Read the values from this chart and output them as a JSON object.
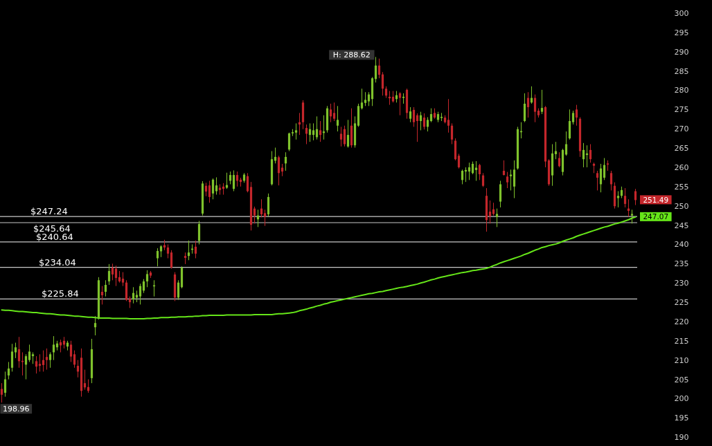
{
  "chart_data": {
    "type": "candlestick",
    "categories": [
      null,
      null,
      null,
      null,
      null,
      null,
      null,
      null,
      null,
      null,
      null,
      null,
      null,
      null,
      null,
      null,
      null,
      null,
      null,
      null,
      null,
      null,
      null,
      null,
      null,
      null,
      null,
      null,
      null,
      null,
      null,
      null,
      null,
      null,
      null,
      null,
      null,
      null,
      null,
      null,
      null,
      null,
      null,
      null,
      null,
      null,
      null,
      null,
      null,
      null,
      null,
      null,
      null,
      null,
      null,
      null,
      null,
      null,
      null,
      null,
      null,
      null,
      null,
      null,
      null,
      null,
      null,
      null,
      null,
      null,
      null,
      null,
      null,
      null,
      null,
      null,
      null,
      null,
      null,
      null,
      null,
      null,
      null,
      null,
      null,
      null,
      null,
      null,
      null,
      null,
      null,
      null,
      null,
      null,
      null,
      null,
      null,
      null,
      null,
      null,
      null,
      null,
      null,
      null,
      null,
      null,
      null,
      null,
      null,
      null,
      null,
      null,
      null,
      null,
      null,
      null,
      null,
      null,
      null,
      null,
      null,
      null,
      null,
      null,
      null,
      null,
      null,
      null,
      null,
      null,
      null,
      null,
      null,
      null,
      null,
      null,
      null,
      null,
      null,
      null,
      null,
      null,
      null,
      null,
      null,
      null,
      null,
      null,
      null,
      null,
      null,
      null,
      null,
      null,
      null,
      null,
      null,
      null,
      null,
      null,
      null,
      null,
      null,
      null,
      null,
      null,
      null,
      null,
      null,
      null,
      null,
      null,
      null,
      null,
      null,
      null,
      null,
      null,
      null,
      null,
      null,
      null,
      null,
      null
    ],
    "ohlc": [
      [
        202.5,
        204,
        198.96,
        201
      ],
      [
        201.5,
        207,
        200.5,
        205
      ],
      [
        206,
        209.5,
        205,
        207.8
      ],
      [
        208,
        214.2,
        207,
        212.2
      ],
      [
        212,
        214.5,
        210.5,
        213.3
      ],
      [
        212.8,
        216,
        208,
        209.7
      ],
      [
        209.8,
        212,
        206,
        209.5
      ],
      [
        208.8,
        211.5,
        205,
        211
      ],
      [
        210,
        214,
        209.5,
        212.2
      ],
      [
        211,
        212,
        209,
        211.5
      ],
      [
        209.7,
        211,
        206.5,
        208.3
      ],
      [
        209,
        211.5,
        207,
        208.5
      ],
      [
        210,
        212.5,
        207,
        208.7
      ],
      [
        210.8,
        213,
        207.5,
        210
      ],
      [
        210,
        212,
        208,
        211.5
      ],
      [
        212,
        216.2,
        210,
        214
      ],
      [
        213.3,
        215,
        212.5,
        214.3
      ],
      [
        214.6,
        215.3,
        212,
        213.8
      ],
      [
        215,
        216,
        213,
        214
      ],
      [
        213.5,
        215,
        212.5,
        214.5
      ],
      [
        214,
        215,
        209.5,
        210.9
      ],
      [
        211.5,
        212.5,
        208,
        208.8
      ],
      [
        208.5,
        210,
        205.5,
        207
      ],
      [
        210.6,
        213,
        200.5,
        202
      ],
      [
        204,
        207.5,
        202.3,
        202.9
      ],
      [
        203,
        205,
        201.5,
        202
      ],
      [
        205.3,
        215.5,
        204,
        212.8
      ],
      [
        218.5,
        221.4,
        216.4,
        219.6
      ],
      [
        221,
        231.5,
        220.5,
        230.7
      ],
      [
        227.7,
        229.2,
        224.4,
        226.8
      ],
      [
        227.7,
        230.7,
        226.5,
        229.5
      ],
      [
        230.4,
        234.9,
        229.5,
        233.1
      ],
      [
        234,
        235,
        230.7,
        232.2
      ],
      [
        233.7,
        234.5,
        229.2,
        231.3
      ],
      [
        231.5,
        233.1,
        230.1,
        230.4
      ],
      [
        231.1,
        232.8,
        229.2,
        230.1
      ],
      [
        230.1,
        230.7,
        225.3,
        225.6
      ],
      [
        225.9,
        226.5,
        223.5,
        225
      ],
      [
        225.7,
        228.9,
        224.7,
        227.4
      ],
      [
        226.2,
        228,
        225,
        226.9
      ],
      [
        226.5,
        229.8,
        224.4,
        229.2
      ],
      [
        228,
        231,
        227.4,
        230.4
      ],
      [
        230.4,
        233.3,
        228.9,
        232.3
      ],
      [
        232.7,
        233.1,
        231.3,
        231.9
      ],
      [
        229.1,
        230.7,
        226.5,
        229.4
      ],
      [
        236.4,
        239,
        234.3,
        238.3
      ],
      [
        238.2,
        239.8,
        236.7,
        239.5
      ],
      [
        239.8,
        241.2,
        238.5,
        239.2
      ],
      [
        239.2,
        240,
        236.4,
        237.6
      ],
      [
        237.9,
        238.5,
        233.7,
        234
      ],
      [
        232.2,
        232.8,
        225.3,
        226.2
      ],
      [
        226.2,
        230.7,
        225.6,
        230.1
      ],
      [
        228.9,
        234.3,
        228.6,
        234
      ],
      [
        237,
        237.9,
        234.9,
        236.5
      ],
      [
        237,
        241,
        235.9,
        237.9
      ],
      [
        238.6,
        240,
        237.6,
        238.9
      ],
      [
        239.4,
        241,
        236.4,
        237.6
      ],
      [
        240.9,
        246.1,
        240,
        245.3
      ],
      [
        248,
        256.4,
        247.5,
        255.8
      ],
      [
        255.2,
        256,
        252.5,
        253.7
      ],
      [
        255.3,
        256.5,
        250.8,
        252.3
      ],
      [
        253.2,
        257.1,
        251.7,
        256.8
      ],
      [
        253.8,
        257.4,
        252.9,
        255.3
      ],
      [
        254.7,
        255.6,
        252.9,
        254.1
      ],
      [
        255,
        255.9,
        252.9,
        254.4
      ],
      [
        254.7,
        258.6,
        254.4,
        255.4
      ],
      [
        256.5,
        258.9,
        255.6,
        258
      ],
      [
        254.4,
        259.2,
        253.8,
        258
      ],
      [
        258,
        258.9,
        255,
        256.5
      ],
      [
        256.8,
        257.3,
        255,
        256.2
      ],
      [
        256.5,
        258.5,
        256,
        258.1
      ],
      [
        257.7,
        258.5,
        253.5,
        253.8
      ],
      [
        254.9,
        256.2,
        243.6,
        245.1
      ],
      [
        249.3,
        249.8,
        245.4,
        247.5
      ],
      [
        246.5,
        249,
        244.5,
        247.5
      ],
      [
        249.3,
        251.7,
        247,
        247.8
      ],
      [
        248.1,
        249,
        244.8,
        247.2
      ],
      [
        247.8,
        253.2,
        247.2,
        252.3
      ],
      [
        255.6,
        264.2,
        255.3,
        262.1
      ],
      [
        261.7,
        265.1,
        261,
        262.7
      ],
      [
        262.6,
        263,
        255.3,
        258.5
      ],
      [
        259.9,
        260.9,
        257.7,
        258.9
      ],
      [
        261,
        263.9,
        259.1,
        262.7
      ],
      [
        264.6,
        269,
        264.2,
        268.8
      ],
      [
        268.8,
        269.9,
        268.1,
        269.1
      ],
      [
        269,
        271.4,
        267.2,
        269.6
      ],
      [
        271.7,
        274.1,
        268.4,
        271.1
      ],
      [
        276.8,
        277.4,
        269.9,
        271.7
      ],
      [
        270.2,
        271.1,
        266,
        268.7
      ],
      [
        268.4,
        271.4,
        266.6,
        269.9
      ],
      [
        268.4,
        271.4,
        267,
        269.6
      ],
      [
        267.8,
        273.2,
        267.2,
        269.9
      ],
      [
        269.6,
        272,
        266.6,
        268.4
      ],
      [
        268.9,
        273.5,
        267.2,
        269.3
      ],
      [
        269.6,
        275.9,
        269,
        275.3
      ],
      [
        275,
        276.5,
        271.7,
        273.2
      ],
      [
        274.1,
        276.8,
        272,
        272.6
      ],
      [
        270.8,
        275.9,
        269.3,
        272.3
      ],
      [
        268.7,
        270.5,
        265.4,
        267.2
      ],
      [
        269.9,
        270.8,
        265.4,
        266
      ],
      [
        265.4,
        272.3,
        265.1,
        268.4
      ],
      [
        270.8,
        275.3,
        265.1,
        265.7
      ],
      [
        265.7,
        273.2,
        265.1,
        271.4
      ],
      [
        270.8,
        276.5,
        270.5,
        275.9
      ],
      [
        275.3,
        280.4,
        275,
        276.8
      ],
      [
        276.7,
        279.5,
        275.9,
        277.5
      ],
      [
        277.1,
        279.5,
        275.9,
        278.9
      ],
      [
        277.7,
        283.4,
        275.9,
        283.1
      ],
      [
        282.9,
        288.62,
        282,
        286.4
      ],
      [
        286.4,
        288.2,
        283.1,
        284
      ],
      [
        284.1,
        284.7,
        278.6,
        280.4
      ],
      [
        280.4,
        281,
        278,
        278.6
      ],
      [
        278.3,
        279.8,
        276.2,
        277.9
      ],
      [
        278.3,
        279.8,
        276.8,
        277.1
      ],
      [
        277.7,
        279.8,
        276.8,
        278.7
      ],
      [
        279.2,
        279.5,
        273.5,
        278
      ],
      [
        278,
        279.2,
        276.5,
        278.3
      ],
      [
        280.1,
        280.4,
        272.6,
        274.1
      ],
      [
        272.6,
        275.6,
        271.7,
        274.5
      ],
      [
        274.9,
        275.6,
        270.5,
        271.7
      ],
      [
        273.5,
        274,
        266.6,
        272
      ],
      [
        272,
        274.4,
        269.6,
        273.5
      ],
      [
        272.9,
        274,
        269.8,
        270.5
      ],
      [
        270.5,
        273,
        269.3,
        272.3
      ],
      [
        272,
        275.3,
        271.7,
        273.8
      ],
      [
        274.1,
        275.3,
        272.6,
        272.9
      ],
      [
        272.3,
        274.4,
        271.7,
        273.8
      ],
      [
        272.8,
        274.1,
        272,
        273.1
      ],
      [
        272.9,
        273.5,
        271.4,
        271.7
      ],
      [
        272.3,
        277.7,
        269,
        270.8
      ],
      [
        270.8,
        271.4,
        266,
        267.2
      ],
      [
        266.9,
        267.5,
        261.8,
        262.1
      ],
      [
        263,
        263.5,
        259.7,
        260
      ],
      [
        256.7,
        259.4,
        255.6,
        259.1
      ],
      [
        258.9,
        260,
        256.2,
        259.3
      ],
      [
        258.9,
        261.2,
        256.7,
        260
      ],
      [
        258.5,
        261.5,
        258.2,
        260.9
      ],
      [
        259.3,
        261.6,
        256.5,
        259.9
      ],
      [
        260.6,
        260.9,
        256.7,
        258.2
      ],
      [
        257.9,
        258.5,
        254.9,
        255.2
      ],
      [
        252.6,
        254.6,
        243.3,
        246.3
      ],
      [
        248.5,
        251.4,
        245.4,
        247.3
      ],
      [
        249.1,
        250.8,
        247.5,
        247.9
      ],
      [
        247.1,
        249.3,
        244.5,
        247.9
      ],
      [
        251.1,
        256.5,
        249.6,
        255.6
      ],
      [
        259.1,
        261.8,
        257.9,
        258
      ],
      [
        257.6,
        258.8,
        254.6,
        256.1
      ],
      [
        257.7,
        259.4,
        254,
        258.1
      ],
      [
        255,
        261.8,
        252,
        259.4
      ],
      [
        259.7,
        270.5,
        259.4,
        269.9
      ],
      [
        269.1,
        271.7,
        267.5,
        269.4
      ],
      [
        272,
        279.2,
        271.7,
        276.5
      ],
      [
        278,
        279.5,
        272.9,
        275.6
      ],
      [
        276.8,
        281,
        276.5,
        278
      ],
      [
        278,
        278.9,
        271.7,
        274.4
      ],
      [
        274.7,
        275.3,
        272.9,
        273.5
      ],
      [
        274.4,
        280.1,
        273.8,
        275.4
      ],
      [
        275.6,
        275.9,
        260,
        261.5
      ],
      [
        261.8,
        262.1,
        255.2,
        255.6
      ],
      [
        257.9,
        266,
        255.2,
        263.6
      ],
      [
        263.4,
        266.6,
        262.1,
        264.2
      ],
      [
        262.4,
        263.9,
        260,
        260.3
      ],
      [
        258.8,
        264.8,
        257.9,
        264.5
      ],
      [
        263.3,
        269.3,
        263,
        266
      ],
      [
        267.5,
        275,
        267.2,
        272
      ],
      [
        271.7,
        274.7,
        271.1,
        274.1
      ],
      [
        275,
        276.2,
        270.8,
        272.9
      ],
      [
        272.6,
        273,
        262.7,
        264.2
      ],
      [
        262.1,
        266.3,
        260,
        264.5
      ],
      [
        263.2,
        265.7,
        260,
        263.6
      ],
      [
        264.5,
        266,
        261.2,
        262.1
      ],
      [
        260.9,
        261.2,
        258.5,
        260.4
      ],
      [
        258.5,
        259.1,
        254,
        257.3
      ],
      [
        255.6,
        260.9,
        253.5,
        259.7
      ],
      [
        257.3,
        262.4,
        256.7,
        260.6
      ],
      [
        261,
        261.8,
        259.1,
        260.7
      ],
      [
        258.5,
        259.1,
        254,
        255.6
      ],
      [
        255.2,
        256.1,
        249.3,
        249.9
      ],
      [
        252,
        253.8,
        249.6,
        252.6
      ],
      [
        252.6,
        255,
        252,
        254.1
      ],
      [
        252.6,
        254.6,
        249.6,
        250.5
      ],
      [
        249.3,
        251.7,
        247.2,
        248.7
      ],
      [
        247.5,
        249,
        245.4,
        247.9
      ],
      [
        253.8,
        254.4,
        250.2,
        251.49
      ]
    ],
    "series": [
      {
        "type": "line",
        "color": "#66e619",
        "values": [
          223.0,
          222.9,
          222.9,
          222.8,
          222.7,
          222.6,
          222.6,
          222.5,
          222.4,
          222.3,
          222.3,
          222.2,
          222.1,
          222.0,
          222.0,
          221.9,
          221.8,
          221.7,
          221.7,
          221.6,
          221.5,
          221.4,
          221.4,
          221.3,
          221.2,
          221.1,
          221.1,
          221.0,
          220.9,
          220.9,
          220.9,
          220.9,
          220.8,
          220.8,
          220.8,
          220.8,
          220.8,
          220.7,
          220.7,
          220.7,
          220.7,
          220.7,
          220.8,
          220.8,
          220.9,
          220.9,
          221.0,
          221.0,
          221.0,
          221.1,
          221.1,
          221.2,
          221.2,
          221.2,
          221.3,
          221.3,
          221.4,
          221.4,
          221.5,
          221.5,
          221.6,
          221.6,
          221.6,
          221.6,
          221.6,
          221.7,
          221.7,
          221.7,
          221.7,
          221.7,
          221.7,
          221.7,
          221.7,
          221.8,
          221.8,
          221.8,
          221.8,
          221.8,
          221.8,
          221.9,
          222.0,
          222.0,
          222.1,
          222.2,
          222.3,
          222.5,
          222.8,
          223.0,
          223.2,
          223.5,
          223.7,
          224.0,
          224.2,
          224.5,
          224.7,
          225.0,
          225.2,
          225.4,
          225.6,
          225.8,
          226.0,
          226.2,
          226.4,
          226.6,
          226.8,
          227.0,
          227.2,
          227.3,
          227.5,
          227.7,
          227.8,
          228.0,
          228.2,
          228.4,
          228.6,
          228.8,
          228.9,
          229.1,
          229.3,
          229.5,
          229.7,
          230.0,
          230.2,
          230.5,
          230.8,
          231.0,
          231.3,
          231.5,
          231.7,
          231.9,
          232.1,
          232.3,
          232.5,
          232.7,
          232.8,
          233.0,
          233.2,
          233.3,
          233.5,
          233.6,
          233.8,
          234.1,
          234.5,
          234.8,
          235.2,
          235.5,
          235.8,
          236.1,
          236.4,
          236.7,
          237.0,
          237.4,
          237.7,
          238.1,
          238.5,
          238.8,
          239.2,
          239.4,
          239.7,
          239.9,
          240.1,
          240.4,
          240.8,
          241.1,
          241.4,
          241.7,
          242.1,
          242.4,
          242.7,
          243.0,
          243.3,
          243.6,
          243.9,
          244.2,
          244.5,
          244.7,
          245.0,
          245.3,
          245.5,
          245.8,
          246.1,
          246.4,
          246.8,
          247.1
        ]
      }
    ],
    "ylim": [
      187.7,
      303.4
    ],
    "yticks": [
      190,
      195,
      200,
      205,
      210,
      215,
      220,
      225,
      230,
      235,
      240,
      245,
      250,
      255,
      260,
      265,
      270,
      275,
      280,
      285,
      290,
      295,
      300
    ],
    "ref_lines": [
      {
        "axis": "y",
        "value": 247.24,
        "label": "$247.24",
        "color": "#c8c8c8"
      },
      {
        "axis": "y",
        "value": 245.64,
        "label": "$245.64",
        "color": "#c8c8c8"
      },
      {
        "axis": "y",
        "value": 240.64,
        "label": "$240.64",
        "color": "#c8c8c8"
      },
      {
        "axis": "y",
        "value": 234.04,
        "label": "$234.04",
        "color": "#c8c8c8"
      },
      {
        "axis": "y",
        "value": 225.84,
        "label": "$225.84",
        "color": "#c8c8c8"
      }
    ],
    "annotations": [
      "H: 288.62",
      "198.96",
      "251.49",
      "247.07"
    ]
  }
}
